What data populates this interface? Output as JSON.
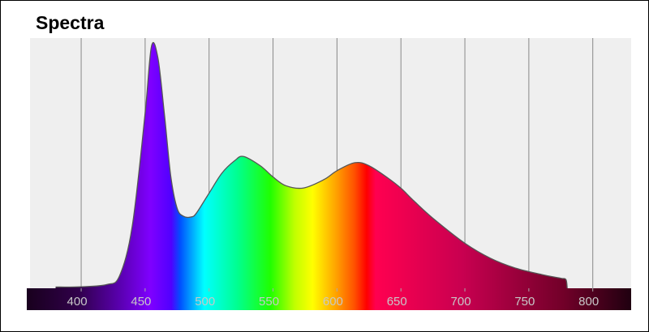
{
  "chart_data": {
    "type": "area",
    "title": "Spectra",
    "x": [
      380,
      400,
      420,
      430,
      440,
      450,
      455,
      460,
      465,
      470,
      475,
      480,
      486,
      490,
      500,
      510,
      520,
      527,
      540,
      550,
      560,
      574,
      590,
      600,
      614,
      625,
      640,
      650,
      660,
      675,
      700,
      720,
      740,
      760,
      775,
      779,
      780
    ],
    "values": [
      0.5,
      0.6,
      1.5,
      5,
      25,
      70,
      96.8,
      92,
      70,
      45,
      32,
      28.8,
      28.5,
      30,
      38,
      46,
      51,
      52.7,
      49,
      44.5,
      41,
      40.1,
      43.5,
      47,
      50.2,
      49,
      44,
      40,
      35,
      28,
      18,
      12,
      8,
      5.5,
      4,
      3.5,
      0
    ],
    "xlim": [
      360,
      830
    ],
    "ylim": [
      0,
      100
    ],
    "xticks": [
      400,
      450,
      500,
      550,
      600,
      650,
      700,
      750,
      800
    ],
    "grid": true,
    "line_color": "#555555"
  }
}
